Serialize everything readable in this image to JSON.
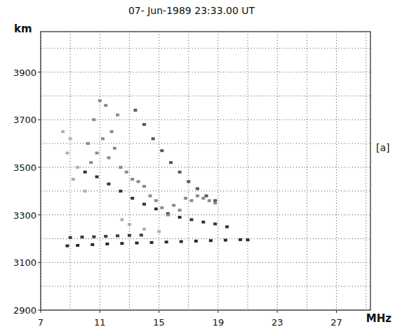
{
  "chart_data": {
    "type": "scatter",
    "title": "07- Jun-1989  23:33.00 UT",
    "y_label": "km",
    "x_label": "MHz",
    "annotation": "[a]",
    "xlim": [
      7,
      29.3
    ],
    "xticks": [
      7,
      11,
      15,
      19,
      23,
      27
    ],
    "ylim": [
      2900,
      4070
    ],
    "yticks": [
      2900,
      3100,
      3300,
      3500,
      3700,
      3900
    ],
    "grid": true,
    "marker": "square",
    "tick_labels": true,
    "series": [
      {
        "color": "#2a2a2a",
        "x": [
          8.8,
          9.5,
          10.5,
          11.5,
          12.5,
          13.5,
          14.5,
          15.5,
          16.5,
          17.5,
          18.5,
          19.5,
          20.5,
          21
        ],
        "values": [
          3170,
          3172,
          3175,
          3178,
          3180,
          3182,
          3184,
          3186,
          3188,
          3190,
          3192,
          3194,
          3196,
          3195
        ]
      },
      {
        "color": "#3a3a3a",
        "x": [
          9,
          9.8,
          10.6,
          11.4,
          12.2,
          13,
          13.8
        ],
        "values": [
          3205,
          3207,
          3208,
          3210,
          3212,
          3214,
          3215
        ]
      },
      {
        "color": "#333333",
        "x": [
          10,
          10.8,
          11.6,
          12.4,
          13.2,
          14,
          14.8,
          15.6,
          16.4,
          17.2,
          18,
          18.8,
          19.6
        ],
        "values": [
          3480,
          3460,
          3430,
          3400,
          3370,
          3345,
          3325,
          3305,
          3290,
          3280,
          3270,
          3262,
          3250
        ]
      },
      {
        "color": "#555555",
        "x": [
          13.4,
          14,
          14.6,
          15.2,
          15.8,
          16.4,
          17,
          17.6,
          18.2,
          18.8
        ],
        "values": [
          3740,
          3680,
          3620,
          3570,
          3520,
          3480,
          3440,
          3410,
          3380,
          3360
        ]
      },
      {
        "color": "#8a8a8a",
        "x": [
          10.2,
          10.6,
          11,
          11.4,
          11.8,
          12.2,
          10.4,
          10.8,
          11.2,
          11.6,
          12,
          12.4,
          12.8,
          13.2,
          13.6,
          14,
          14.4,
          14.8,
          15.2,
          15.6,
          16,
          16.4,
          16.8,
          17.2,
          17.6,
          18,
          18.4,
          18.8
        ],
        "values": [
          3600,
          3700,
          3780,
          3760,
          3650,
          3720,
          3520,
          3560,
          3620,
          3540,
          3580,
          3500,
          3480,
          3450,
          3440,
          3420,
          3380,
          3360,
          3330,
          3300,
          3340,
          3320,
          3370,
          3360,
          3380,
          3370,
          3360,
          3350
        ]
      },
      {
        "color": "#b0b0b0",
        "x": [
          8.5,
          9,
          8.8,
          9.5,
          9.2,
          10,
          12.5,
          13,
          14,
          15
        ],
        "values": [
          3650,
          3620,
          3560,
          3500,
          3450,
          3400,
          3280,
          3260,
          3240,
          3230
        ]
      }
    ]
  }
}
